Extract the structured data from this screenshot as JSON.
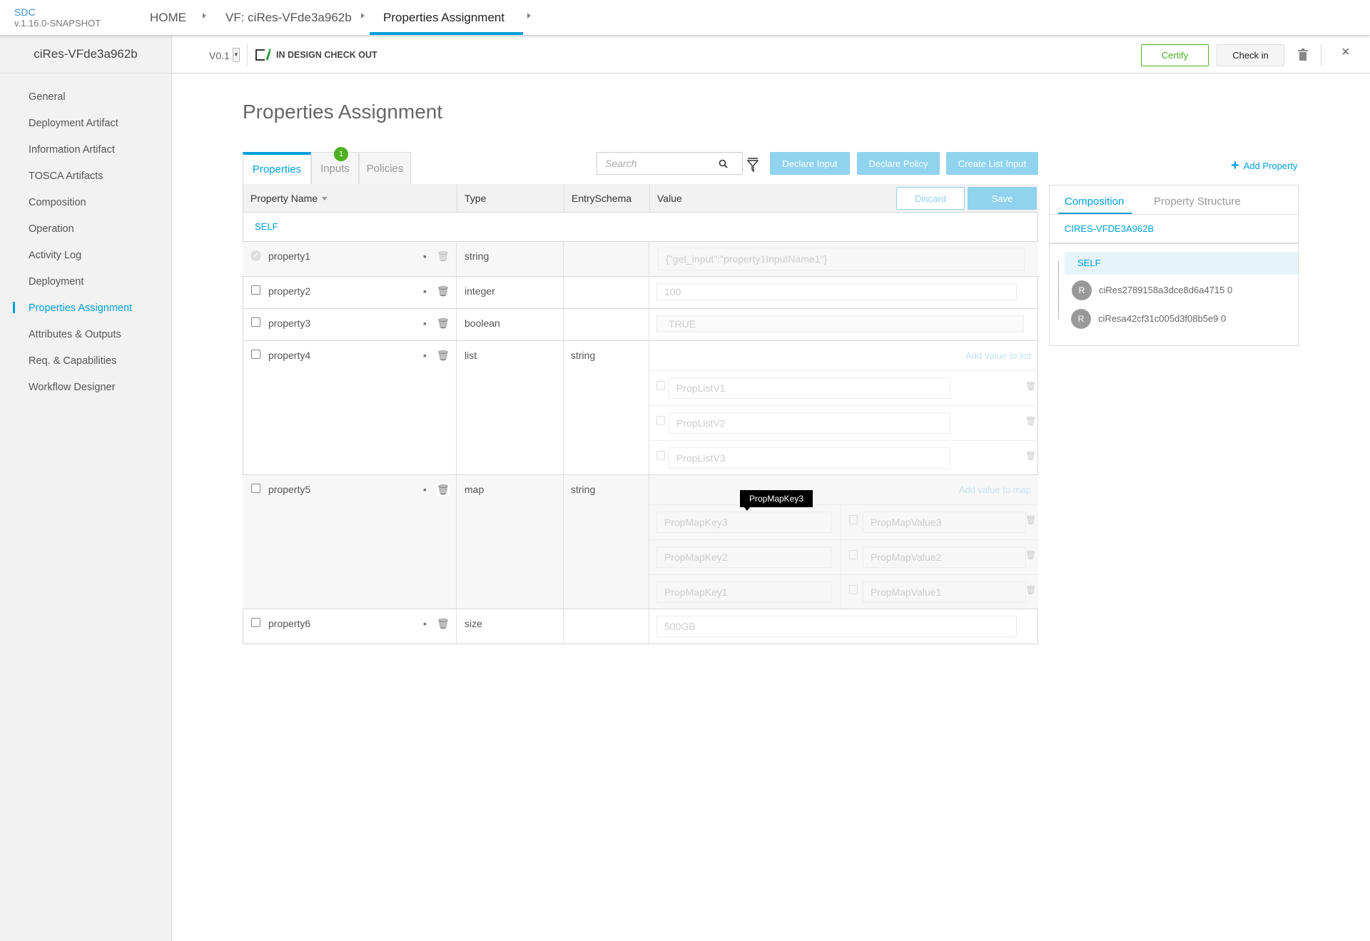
{
  "header": {
    "app": "SDC",
    "version": "v.1.16.0-SNAPSHOT",
    "breadcrumbs": [
      "HOME",
      "VF: ciRes-VFde3a962b",
      "Properties Assignment"
    ],
    "accent": "#009fdb"
  },
  "subbar": {
    "version": "V0.1",
    "status": "IN DESIGN CHECK OUT",
    "certify": "Certify",
    "checkin": "Check in"
  },
  "sidebar": {
    "title": "ciRes-VFde3a962b",
    "items": [
      "General",
      "Deployment Artifact",
      "Information Artifact",
      "TOSCA Artifacts",
      "Composition",
      "Operation",
      "Activity Log",
      "Deployment",
      "Properties Assignment",
      "Attributes & Outputs",
      "Req. & Capabilities",
      "Workflow Designer"
    ],
    "active": "Properties Assignment"
  },
  "main": {
    "title": "Properties Assignment",
    "tabs": [
      {
        "label": "Properties"
      },
      {
        "label": "Inputs",
        "badge": "1"
      },
      {
        "label": "Policies"
      }
    ],
    "search_placeholder": "Search",
    "buttons": {
      "declare_input": "Declare Input",
      "declare_policy": "Declare Policy",
      "create_list_input": "Create List Input",
      "discard": "Discard",
      "save": "Save",
      "add_property": "Add Property"
    },
    "columns": [
      "Property Name",
      "Type",
      "EntrySchema",
      "Value"
    ],
    "group": "SELF",
    "rows": [
      {
        "name": "property1",
        "type": "string",
        "schema": "",
        "value": "{\"get_input\":\"property1InputName1\"}"
      },
      {
        "name": "property2",
        "type": "integer",
        "schema": "",
        "value": "100"
      },
      {
        "name": "property3",
        "type": "boolean",
        "schema": "",
        "value": "TRUE"
      },
      {
        "name": "property4",
        "type": "list",
        "schema": "string",
        "add": "Add value to list",
        "items": [
          "PropListV1",
          "PropListV2",
          "PropListV3"
        ]
      },
      {
        "name": "property5",
        "type": "map",
        "schema": "string",
        "add": "Add value to map",
        "keys": [
          "PropMapKey3",
          "PropMapKey2",
          "PropMapKey1"
        ],
        "values": [
          "PropMapValue3",
          "PropMapValue2",
          "PropMapValue1"
        ]
      },
      {
        "name": "property6",
        "type": "size",
        "schema": "",
        "value": "500GB"
      }
    ],
    "tooltip": "PropMapKey3"
  },
  "panel": {
    "tabs": [
      "Composition",
      "Property Structure"
    ],
    "component": "CIRES-VFDE3A962B",
    "tree": [
      "SELF",
      "ciRes2789158a3dce8d6a4715 0",
      "ciResa42cf31c005d3f08b5e9 0"
    ],
    "avatar": "R"
  }
}
